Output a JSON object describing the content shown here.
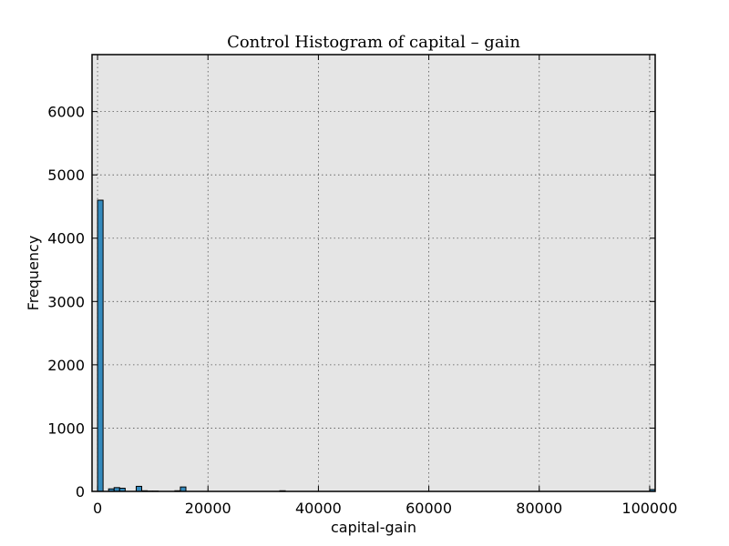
{
  "chart_data": {
    "type": "bar",
    "title": "Control Histogram of capital – gain",
    "xlabel": "capital-gain",
    "ylabel": "Frequency",
    "xlim": [
      -1000,
      101000
    ],
    "ylim": [
      0,
      6900
    ],
    "xticks": [
      0,
      20000,
      40000,
      60000,
      80000,
      100000
    ],
    "yticks": [
      0,
      1000,
      2000,
      3000,
      4000,
      5000,
      6000
    ],
    "grid": true,
    "bar_color": "#348ABD",
    "plot_background": "#E5E5E5",
    "bin_width": 1000,
    "series": [
      {
        "x": [
          0,
          1000,
          2000,
          3000,
          4000,
          5000,
          6000,
          7000,
          8000,
          9000,
          10000,
          11000,
          12000,
          13000,
          14000,
          15000,
          33000,
          100000
        ],
        "values": [
          4600,
          0,
          40,
          60,
          50,
          0,
          0,
          80,
          10,
          5,
          5,
          0,
          0,
          0,
          10,
          70,
          10,
          30
        ]
      }
    ]
  }
}
